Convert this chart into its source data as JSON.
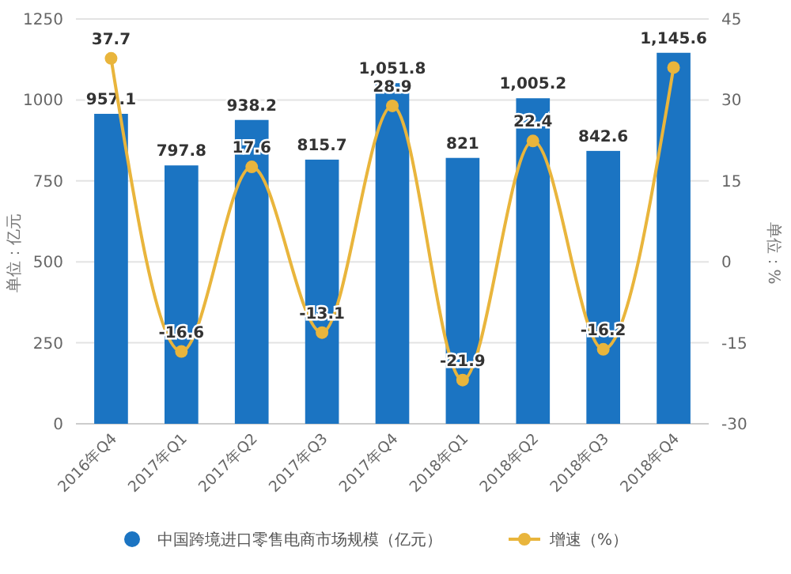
{
  "chart_data": {
    "type": "bar",
    "categories": [
      "2016年Q4",
      "2017年Q1",
      "2017年Q2",
      "2017年Q3",
      "2017年Q4",
      "2018年Q1",
      "2018年Q2",
      "2018年Q3",
      "2018年Q4"
    ],
    "series": [
      {
        "name": "中国跨境进口零售电商市场规模（亿元）",
        "type": "bar",
        "color": "#1b74c2",
        "values": [
          957.1,
          797.8,
          938.2,
          815.7,
          1051.8,
          821,
          1005.2,
          842.6,
          1145.6
        ],
        "value_labels": [
          "957.1",
          "797.8",
          "938.2",
          "815.7",
          "1,051.8",
          "821",
          "1,005.2",
          "842.6",
          "1,145.6"
        ]
      },
      {
        "name": "增速（%）",
        "type": "line",
        "axis": "y2",
        "color": "#e9b53c",
        "marker": "circle",
        "values": [
          37.7,
          -16.6,
          17.6,
          -13.1,
          28.9,
          -21.9,
          22.4,
          -16.2,
          36.0
        ],
        "value_labels": [
          "37.7",
          "-16.6",
          "17.6",
          "-13.1",
          "28.9",
          "-21.9",
          "22.4",
          "-16.2",
          null
        ]
      }
    ],
    "ylabel": "单位：亿元",
    "y2label": "单位：%",
    "ylim": [
      0,
      1250
    ],
    "yticks": [
      0,
      250,
      500,
      750,
      1000,
      1250
    ],
    "y2lim": [
      -30,
      45
    ],
    "y2ticks": [
      -30,
      -15,
      0,
      15,
      30,
      45
    ],
    "grid": "y",
    "legend": "bottom"
  }
}
